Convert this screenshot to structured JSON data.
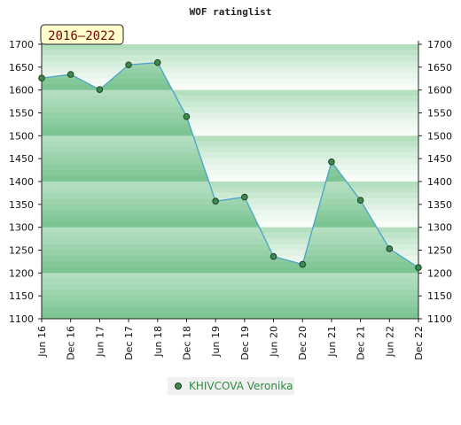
{
  "chart_data": {
    "type": "area",
    "title": "WOF ratinglist",
    "period_label": "2016–2022",
    "categories": [
      "Jun 16",
      "Dec 16",
      "Jun 17",
      "Dec 17",
      "Jun 18",
      "Dec 18",
      "Jun 19",
      "Dec 19",
      "Jun 20",
      "Dec 20",
      "Jun 21",
      "Dec 21",
      "Jun 22",
      "Dec 22"
    ],
    "series": [
      {
        "name": "KHIVCOVA Veronika",
        "values": [
          1626,
          1634,
          1601,
          1655,
          1660,
          1542,
          1357,
          1366,
          1236,
          1219,
          1443,
          1359,
          1253,
          1212
        ]
      }
    ],
    "ylim": [
      1100,
      1700
    ],
    "yticks": [
      1700,
      1650,
      1600,
      1550,
      1500,
      1450,
      1400,
      1350,
      1300,
      1250,
      1200,
      1150,
      1100
    ],
    "grid": true,
    "legend_position": "bottom-center",
    "colors": {
      "fill_dark": "#7cc492",
      "fill_light": "#a9dcb7",
      "line": "#4aa3c8",
      "marker": "#3e8a4e",
      "band_light": "#f1f9f3",
      "band_mid": "#d4ecda",
      "band_deep": "#b7e0c2",
      "badge_bg": "#ffffcc",
      "legend_text": "#2e8b3e"
    }
  }
}
